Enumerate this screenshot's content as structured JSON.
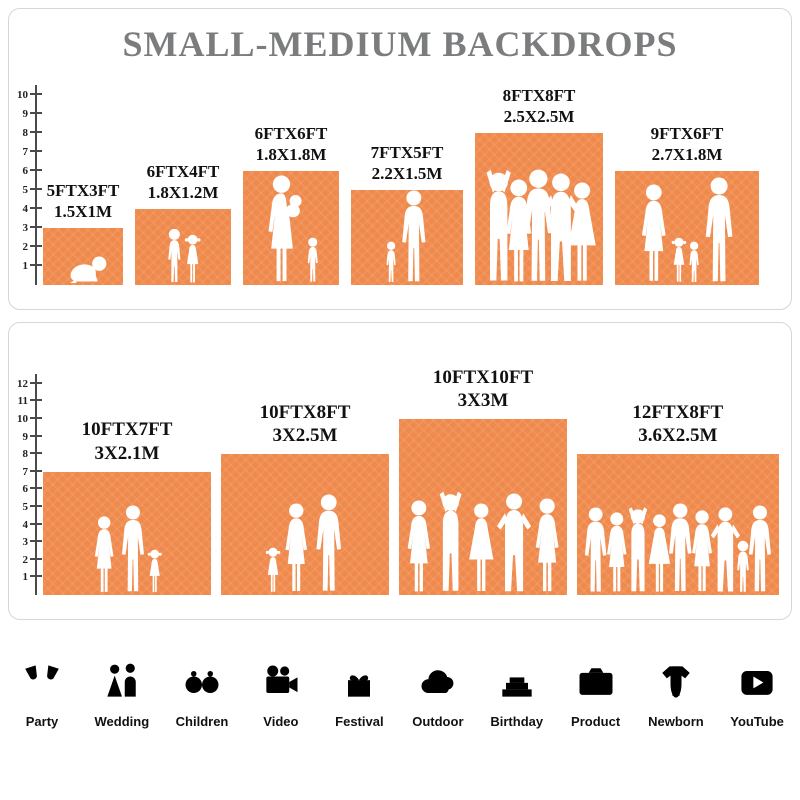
{
  "title": "SMALL-MEDIUM BACKDROPS",
  "accent_color": "#EF8A4C",
  "youtube_color": "#3BA8DC",
  "panel1": {
    "ruler_ticks": [
      1,
      2,
      3,
      4,
      5,
      6,
      7,
      8,
      9,
      10
    ],
    "backdrops": [
      {
        "label_ft": "5FTX3FT",
        "label_m": "1.5X1M",
        "width_ft": 5,
        "height_ft": 3,
        "figures": [
          [
            "baby",
            1.5
          ]
        ]
      },
      {
        "label_ft": "6FTX4FT",
        "label_m": "1.8X1.2M",
        "width_ft": 6,
        "height_ft": 4,
        "figures": [
          [
            "boy",
            2.9
          ],
          [
            "girl",
            2.6
          ]
        ]
      },
      {
        "label_ft": "6FTX6FT",
        "label_m": "1.8X1.8M",
        "width_ft": 6,
        "height_ft": 6,
        "figures": [
          [
            "woman-baby",
            5.7
          ],
          [
            "toddler",
            2.4
          ]
        ]
      },
      {
        "label_ft": "7FTX5FT",
        "label_m": "2.2X1.5M",
        "width_ft": 7,
        "height_ft": 5,
        "figures": [
          [
            "toddler",
            2.2
          ],
          [
            "man",
            4.9
          ]
        ]
      },
      {
        "label_ft": "8FTX8FT",
        "label_m": "2.5X2.5M",
        "width_ft": 8,
        "height_ft": 8,
        "figures": [
          [
            "man-up",
            6.1
          ],
          [
            "woman",
            5.5
          ],
          [
            "man",
            6.0
          ],
          [
            "man-hips",
            5.8
          ],
          [
            "woman-dress",
            5.3
          ]
        ]
      },
      {
        "label_ft": "9FTX6FT",
        "label_m": "2.7X1.8M",
        "width_ft": 9,
        "height_ft": 6,
        "figures": [
          [
            "woman",
            5.2
          ],
          [
            "girl",
            2.4
          ],
          [
            "boy",
            2.2
          ],
          [
            "man",
            5.6
          ]
        ]
      }
    ]
  },
  "panel2": {
    "ruler_ticks": [
      1,
      2,
      3,
      4,
      5,
      6,
      7,
      8,
      9,
      10,
      11,
      12
    ],
    "backdrops": [
      {
        "label_ft": "10FTX7FT",
        "label_m": "3X2.1M",
        "width_ft": 10,
        "height_ft": 7,
        "figures": [
          [
            "woman",
            4.4
          ],
          [
            "man",
            5.0
          ],
          [
            "girl",
            2.5
          ]
        ]
      },
      {
        "label_ft": "10FTX8FT",
        "label_m": "3X2.5M",
        "width_ft": 10,
        "height_ft": 8,
        "figures": [
          [
            "girl",
            2.6
          ],
          [
            "woman",
            5.1
          ],
          [
            "man",
            5.6
          ]
        ]
      },
      {
        "label_ft": "10FTX10FT",
        "label_m": "3X3M",
        "width_ft": 10,
        "height_ft": 10,
        "figures": [
          [
            "woman",
            5.3
          ],
          [
            "man-up",
            5.9
          ],
          [
            "woman-dress",
            5.1
          ],
          [
            "man-hips",
            5.7
          ],
          [
            "woman",
            5.4
          ]
        ]
      },
      {
        "label_ft": "12FTX8FT",
        "label_m": "3.6X2.5M",
        "width_ft": 12,
        "height_ft": 8,
        "figures": [
          [
            "man",
            4.9
          ],
          [
            "woman",
            4.6
          ],
          [
            "man-up",
            5.0
          ],
          [
            "woman-dress",
            4.5
          ],
          [
            "man",
            5.1
          ],
          [
            "woman",
            4.7
          ],
          [
            "man-hips",
            4.9
          ],
          [
            "boy",
            3.0
          ],
          [
            "man",
            5.0
          ]
        ]
      }
    ]
  },
  "categories": [
    {
      "icon": "party-icon",
      "label": "Party"
    },
    {
      "icon": "wedding-icon",
      "label": "Wedding"
    },
    {
      "icon": "children-icon",
      "label": "Children"
    },
    {
      "icon": "video-icon",
      "label": "Video"
    },
    {
      "icon": "festival-icon",
      "label": "Festival"
    },
    {
      "icon": "outdoor-icon",
      "label": "Outdoor"
    },
    {
      "icon": "birthday-icon",
      "label": "Birthday"
    },
    {
      "icon": "product-icon",
      "label": "Product"
    },
    {
      "icon": "newborn-icon",
      "label": "Newborn"
    },
    {
      "icon": "youtube-icon",
      "label": "YouTube",
      "color": "#3BA8DC"
    }
  ]
}
